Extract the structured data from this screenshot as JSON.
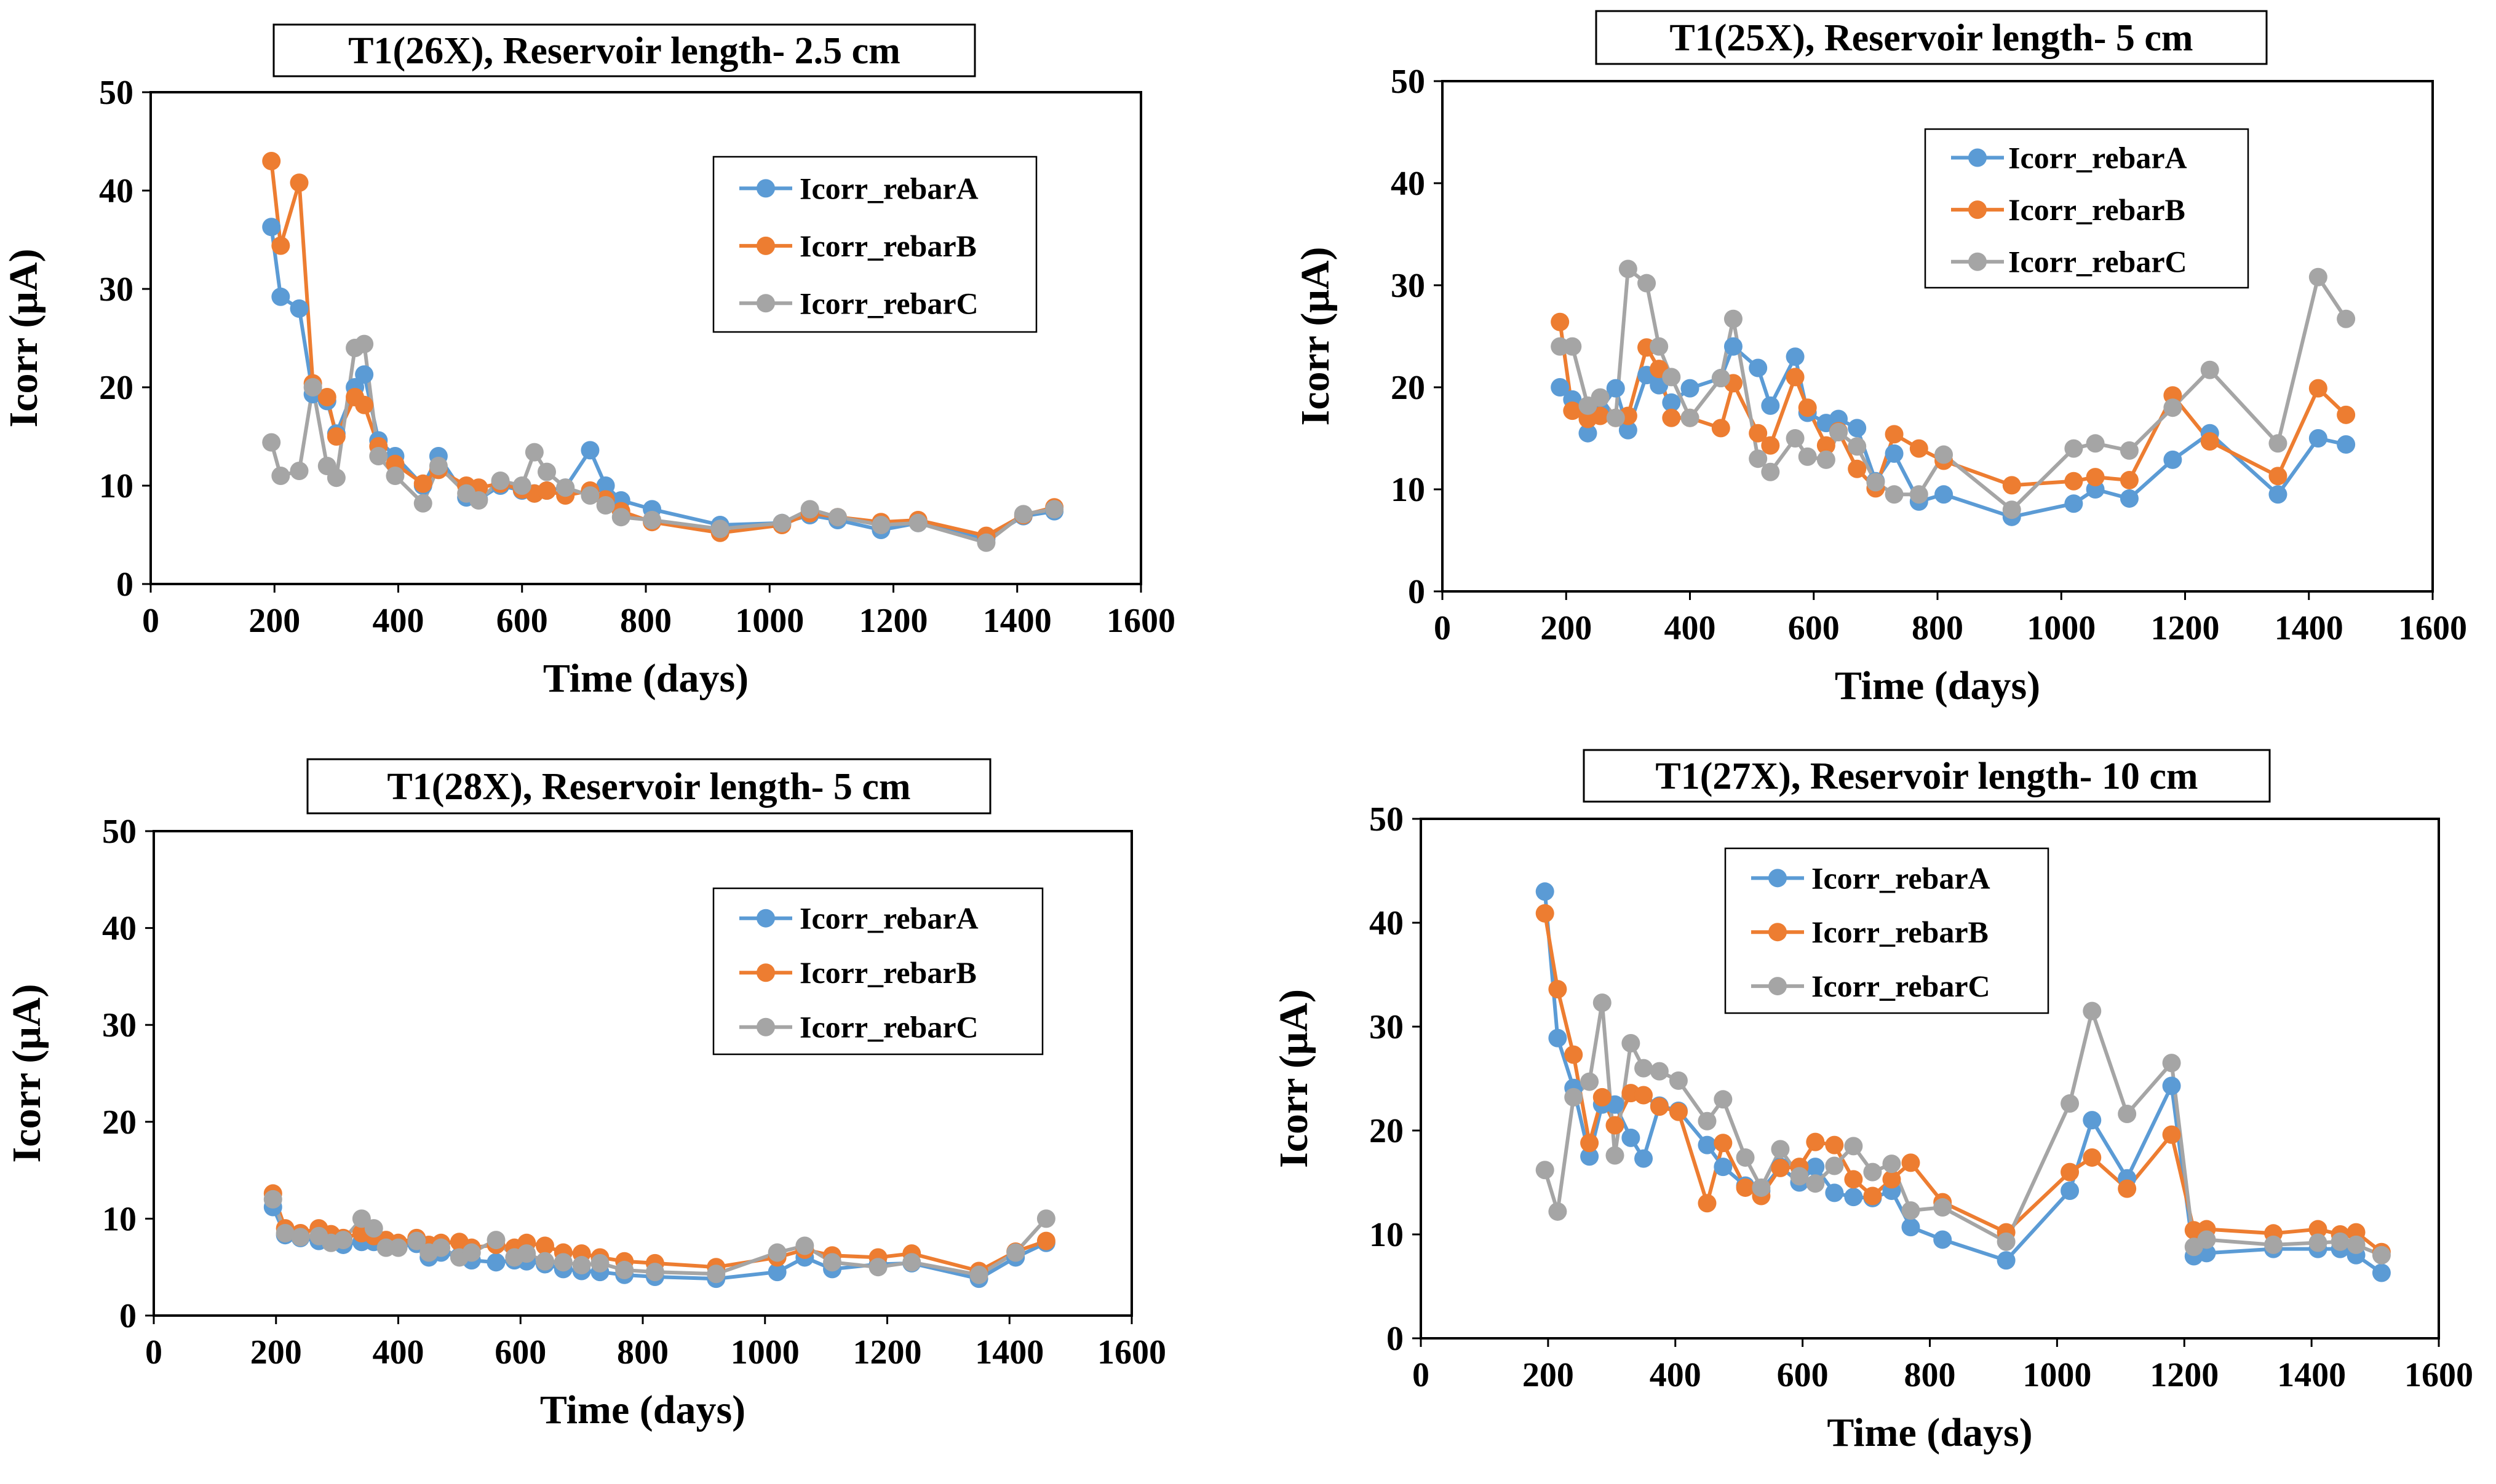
{
  "colors": {
    "rebarA": "#5b9bd5",
    "rebarB": "#ed7d31",
    "rebarC": "#a5a5a5"
  },
  "chart_data": [
    {
      "type": "line",
      "title": "T1(26X), Reservoir length- 2.5 cm",
      "xlabel": "Time (days)",
      "ylabel": "Icorr (μA)",
      "xlim": [
        0,
        1600
      ],
      "ylim": [
        0,
        50
      ],
      "xticks": [
        0,
        200,
        400,
        600,
        800,
        1000,
        1200,
        1400,
        1600
      ],
      "yticks": [
        0,
        10,
        20,
        30,
        40,
        50
      ],
      "legend_position": "top-right",
      "series": [
        {
          "name": "Icorr_rebarA",
          "color": "#5b9bd5",
          "x": [
            195,
            210,
            240,
            262,
            285,
            300,
            330,
            345,
            368,
            395,
            440,
            465,
            510,
            530,
            565,
            600,
            620,
            640,
            670,
            710,
            735,
            760,
            810,
            920,
            1020,
            1065,
            1110,
            1180,
            1240,
            1350,
            1410,
            1460
          ],
          "y": [
            36.3,
            29.2,
            28.0,
            19.3,
            18.6,
            15.3,
            20.0,
            21.3,
            14.6,
            13.0,
            10.0,
            13.0,
            8.8,
            8.6,
            10.0,
            9.5,
            9.2,
            9.5,
            9.8,
            13.6,
            10.0,
            8.5,
            7.6,
            6.0,
            6.2,
            7.0,
            6.5,
            5.5,
            6.2,
            4.6,
            6.9,
            7.4
          ]
        },
        {
          "name": "Icorr_rebarB",
          "color": "#ed7d31",
          "x": [
            195,
            210,
            240,
            262,
            285,
            300,
            330,
            345,
            368,
            395,
            440,
            465,
            510,
            530,
            565,
            600,
            620,
            640,
            670,
            710,
            735,
            760,
            810,
            920,
            1020,
            1065,
            1110,
            1180,
            1240,
            1350,
            1410,
            1460
          ],
          "y": [
            43.0,
            34.4,
            40.8,
            20.4,
            19.0,
            15.0,
            19.0,
            18.2,
            14.0,
            12.2,
            10.2,
            11.6,
            10.0,
            9.8,
            10.2,
            9.6,
            9.2,
            9.5,
            9.0,
            9.5,
            8.6,
            7.4,
            6.3,
            5.2,
            6.0,
            7.2,
            6.8,
            6.3,
            6.5,
            4.9,
            7.0,
            7.8
          ]
        },
        {
          "name": "Icorr_rebarC",
          "color": "#a5a5a5",
          "x": [
            195,
            210,
            240,
            262,
            285,
            300,
            330,
            345,
            368,
            395,
            440,
            465,
            510,
            530,
            565,
            600,
            620,
            640,
            670,
            710,
            735,
            760,
            810,
            920,
            1020,
            1065,
            1110,
            1180,
            1240,
            1350,
            1410,
            1460
          ],
          "y": [
            14.4,
            11.0,
            11.5,
            20.0,
            12.0,
            10.8,
            24.0,
            24.4,
            13.0,
            11.0,
            8.2,
            12.0,
            9.2,
            8.5,
            10.5,
            10.0,
            13.4,
            11.4,
            9.8,
            9.0,
            8.0,
            6.8,
            6.5,
            5.6,
            6.2,
            7.6,
            6.8,
            6.0,
            6.2,
            4.2,
            7.1,
            7.6
          ]
        }
      ]
    },
    {
      "type": "line",
      "title": "T1(25X), Reservoir length- 5 cm",
      "xlabel": "Time (days)",
      "ylabel": "Icorr (μA)",
      "xlim": [
        0,
        1600
      ],
      "ylim": [
        0,
        50
      ],
      "xticks": [
        0,
        200,
        400,
        600,
        800,
        1000,
        1200,
        1400,
        1600
      ],
      "yticks": [
        0,
        10,
        20,
        30,
        40,
        50
      ],
      "legend_position": "top-right",
      "series": [
        {
          "name": "Icorr_rebarA",
          "color": "#5b9bd5",
          "x": [
            190,
            210,
            235,
            255,
            280,
            300,
            330,
            350,
            370,
            400,
            450,
            470,
            510,
            530,
            570,
            590,
            620,
            640,
            670,
            700,
            730,
            770,
            810,
            920,
            1020,
            1055,
            1110,
            1180,
            1240,
            1350,
            1415,
            1460
          ],
          "y": [
            20.0,
            18.8,
            15.5,
            17.8,
            19.9,
            15.8,
            21.2,
            20.2,
            18.5,
            19.9,
            20.9,
            24.0,
            21.9,
            18.2,
            23.0,
            17.5,
            16.5,
            16.9,
            16.0,
            10.8,
            13.5,
            8.8,
            9.5,
            7.3,
            8.6,
            10.0,
            9.1,
            12.9,
            15.5,
            9.5,
            15.0,
            14.4
          ]
        },
        {
          "name": "Icorr_rebarB",
          "color": "#ed7d31",
          "x": [
            190,
            210,
            235,
            255,
            280,
            300,
            330,
            350,
            370,
            400,
            450,
            470,
            510,
            530,
            570,
            590,
            620,
            640,
            670,
            700,
            730,
            770,
            810,
            920,
            1020,
            1055,
            1110,
            1180,
            1240,
            1350,
            1415,
            1460
          ],
          "y": [
            26.4,
            17.7,
            16.9,
            17.2,
            17.0,
            17.2,
            23.9,
            21.8,
            17.0,
            17.0,
            16.0,
            20.4,
            15.5,
            14.3,
            21.0,
            18.0,
            14.3,
            15.7,
            12.0,
            10.1,
            15.4,
            14.0,
            12.8,
            10.4,
            10.8,
            11.2,
            10.9,
            19.2,
            14.7,
            11.3,
            19.9,
            17.3
          ]
        },
        {
          "name": "Icorr_rebarC",
          "color": "#a5a5a5",
          "x": [
            190,
            210,
            235,
            255,
            280,
            300,
            330,
            350,
            370,
            400,
            450,
            470,
            510,
            530,
            570,
            590,
            620,
            640,
            670,
            700,
            730,
            770,
            810,
            920,
            1020,
            1055,
            1110,
            1180,
            1240,
            1350,
            1415,
            1460
          ],
          "y": [
            24.0,
            24.0,
            18.2,
            19.0,
            17.0,
            31.6,
            30.2,
            24.0,
            21.0,
            17.0,
            20.9,
            26.7,
            13.0,
            11.7,
            15.0,
            13.2,
            12.9,
            15.6,
            14.2,
            10.7,
            9.5,
            9.5,
            13.4,
            8.0,
            14.0,
            14.5,
            13.8,
            18.0,
            21.7,
            14.5,
            30.8,
            26.7
          ]
        }
      ]
    },
    {
      "type": "line",
      "title": "T1(28X), Reservoir length- 5 cm",
      "xlabel": "Time (days)",
      "ylabel": "Icorr (μA)",
      "xlim": [
        0,
        1600
      ],
      "ylim": [
        0,
        50
      ],
      "xticks": [
        0,
        200,
        400,
        600,
        800,
        1000,
        1200,
        1400,
        1600
      ],
      "yticks": [
        0,
        10,
        20,
        30,
        40,
        50
      ],
      "legend_position": "top-right",
      "series": [
        {
          "name": "Icorr_rebarA",
          "color": "#5b9bd5",
          "x": [
            195,
            215,
            240,
            270,
            290,
            310,
            340,
            360,
            380,
            400,
            430,
            450,
            470,
            500,
            520,
            560,
            590,
            610,
            640,
            670,
            700,
            730,
            770,
            820,
            920,
            1020,
            1065,
            1110,
            1185,
            1240,
            1350,
            1410,
            1460
          ],
          "y": [
            11.2,
            8.3,
            8.0,
            7.7,
            7.8,
            7.3,
            7.6,
            7.6,
            7.4,
            7.1,
            7.4,
            6.0,
            6.5,
            6.1,
            5.7,
            5.5,
            5.7,
            5.6,
            5.3,
            4.8,
            4.6,
            4.5,
            4.2,
            4.0,
            3.8,
            4.5,
            6.0,
            4.8,
            5.3,
            5.4,
            3.8,
            6.0,
            7.5
          ]
        },
        {
          "name": "Icorr_rebarB",
          "color": "#ed7d31",
          "x": [
            195,
            215,
            240,
            270,
            290,
            310,
            340,
            360,
            380,
            400,
            430,
            450,
            470,
            500,
            520,
            560,
            590,
            610,
            640,
            670,
            700,
            730,
            770,
            820,
            920,
            1020,
            1065,
            1110,
            1185,
            1240,
            1350,
            1410,
            1460
          ],
          "y": [
            12.6,
            9.0,
            8.5,
            9.0,
            8.4,
            8.0,
            8.5,
            8.2,
            7.8,
            7.5,
            8.0,
            7.3,
            7.5,
            7.6,
            7.0,
            7.3,
            7.0,
            7.5,
            7.2,
            6.5,
            6.4,
            6.0,
            5.6,
            5.4,
            5.0,
            6.0,
            6.8,
            6.2,
            6.0,
            6.4,
            4.6,
            6.6,
            7.7
          ]
        },
        {
          "name": "Icorr_rebarC",
          "color": "#a5a5a5",
          "x": [
            195,
            215,
            240,
            270,
            290,
            310,
            340,
            360,
            380,
            400,
            430,
            450,
            470,
            500,
            520,
            560,
            590,
            610,
            640,
            670,
            700,
            730,
            770,
            820,
            920,
            1020,
            1065,
            1110,
            1185,
            1240,
            1350,
            1410,
            1460
          ],
          "y": [
            12.0,
            8.5,
            8.1,
            8.2,
            7.5,
            7.8,
            10.0,
            9.0,
            7.0,
            7.0,
            7.7,
            6.5,
            7.0,
            6.0,
            6.5,
            7.8,
            6.0,
            6.4,
            5.6,
            5.5,
            5.2,
            5.4,
            4.7,
            4.5,
            4.3,
            6.5,
            7.2,
            5.5,
            5.0,
            5.5,
            4.2,
            6.5,
            10.0
          ]
        }
      ]
    },
    {
      "type": "line",
      "title": "T1(27X), Reservoir length- 10 cm",
      "xlabel": "Time (days)",
      "ylabel": "Icorr (μA)",
      "xlim": [
        0,
        1600
      ],
      "ylim": [
        0,
        50
      ],
      "xticks": [
        0,
        200,
        400,
        600,
        800,
        1000,
        1200,
        1400,
        1600
      ],
      "yticks": [
        0,
        10,
        20,
        30,
        40,
        50
      ],
      "legend_position": "top-left",
      "series": [
        {
          "name": "Icorr_rebarA",
          "color": "#5b9bd5",
          "x": [
            195,
            215,
            240,
            265,
            285,
            305,
            330,
            350,
            375,
            405,
            450,
            475,
            510,
            535,
            565,
            595,
            620,
            650,
            680,
            710,
            740,
            770,
            820,
            920,
            1020,
            1055,
            1110,
            1180,
            1215,
            1235,
            1340,
            1410,
            1445,
            1470,
            1510
          ],
          "y": [
            43.0,
            28.9,
            24.1,
            17.5,
            22.5,
            22.5,
            19.3,
            17.3,
            22.4,
            21.9,
            18.6,
            16.5,
            14.7,
            14.2,
            16.5,
            15.0,
            16.5,
            14.0,
            13.6,
            13.5,
            14.2,
            10.7,
            9.5,
            7.5,
            14.2,
            21.0,
            15.4,
            24.3,
            7.9,
            8.2,
            8.6,
            8.6,
            8.6,
            8.0,
            6.3
          ]
        },
        {
          "name": "Icorr_rebarB",
          "color": "#ed7d31",
          "x": [
            195,
            215,
            240,
            265,
            285,
            305,
            330,
            350,
            375,
            405,
            450,
            475,
            510,
            535,
            565,
            595,
            620,
            650,
            680,
            710,
            740,
            770,
            820,
            920,
            1020,
            1055,
            1110,
            1180,
            1215,
            1235,
            1340,
            1410,
            1445,
            1470,
            1510
          ],
          "y": [
            40.9,
            33.6,
            27.3,
            18.8,
            23.2,
            20.5,
            23.6,
            23.4,
            22.3,
            21.8,
            13.0,
            18.8,
            14.5,
            13.7,
            16.4,
            16.5,
            18.9,
            18.6,
            15.3,
            13.7,
            15.3,
            16.9,
            13.1,
            10.2,
            16.0,
            17.4,
            14.4,
            19.6,
            10.4,
            10.5,
            10.1,
            10.5,
            10.0,
            10.2,
            8.3
          ]
        },
        {
          "name": "Icorr_rebarC",
          "color": "#a5a5a5",
          "x": [
            195,
            215,
            240,
            265,
            285,
            305,
            330,
            350,
            375,
            405,
            450,
            475,
            510,
            535,
            565,
            595,
            620,
            650,
            680,
            710,
            740,
            770,
            820,
            920,
            1020,
            1055,
            1110,
            1180,
            1215,
            1235,
            1340,
            1410,
            1445,
            1470,
            1510
          ],
          "y": [
            16.2,
            12.2,
            23.2,
            24.7,
            32.3,
            17.6,
            28.4,
            26.0,
            25.7,
            24.8,
            20.9,
            23.0,
            17.4,
            14.5,
            18.2,
            15.6,
            14.9,
            16.6,
            18.5,
            16.0,
            16.8,
            12.3,
            12.6,
            9.3,
            22.6,
            31.5,
            21.6,
            26.5,
            8.8,
            9.5,
            9.0,
            9.2,
            9.3,
            9.0,
            8.0
          ]
        }
      ]
    }
  ]
}
